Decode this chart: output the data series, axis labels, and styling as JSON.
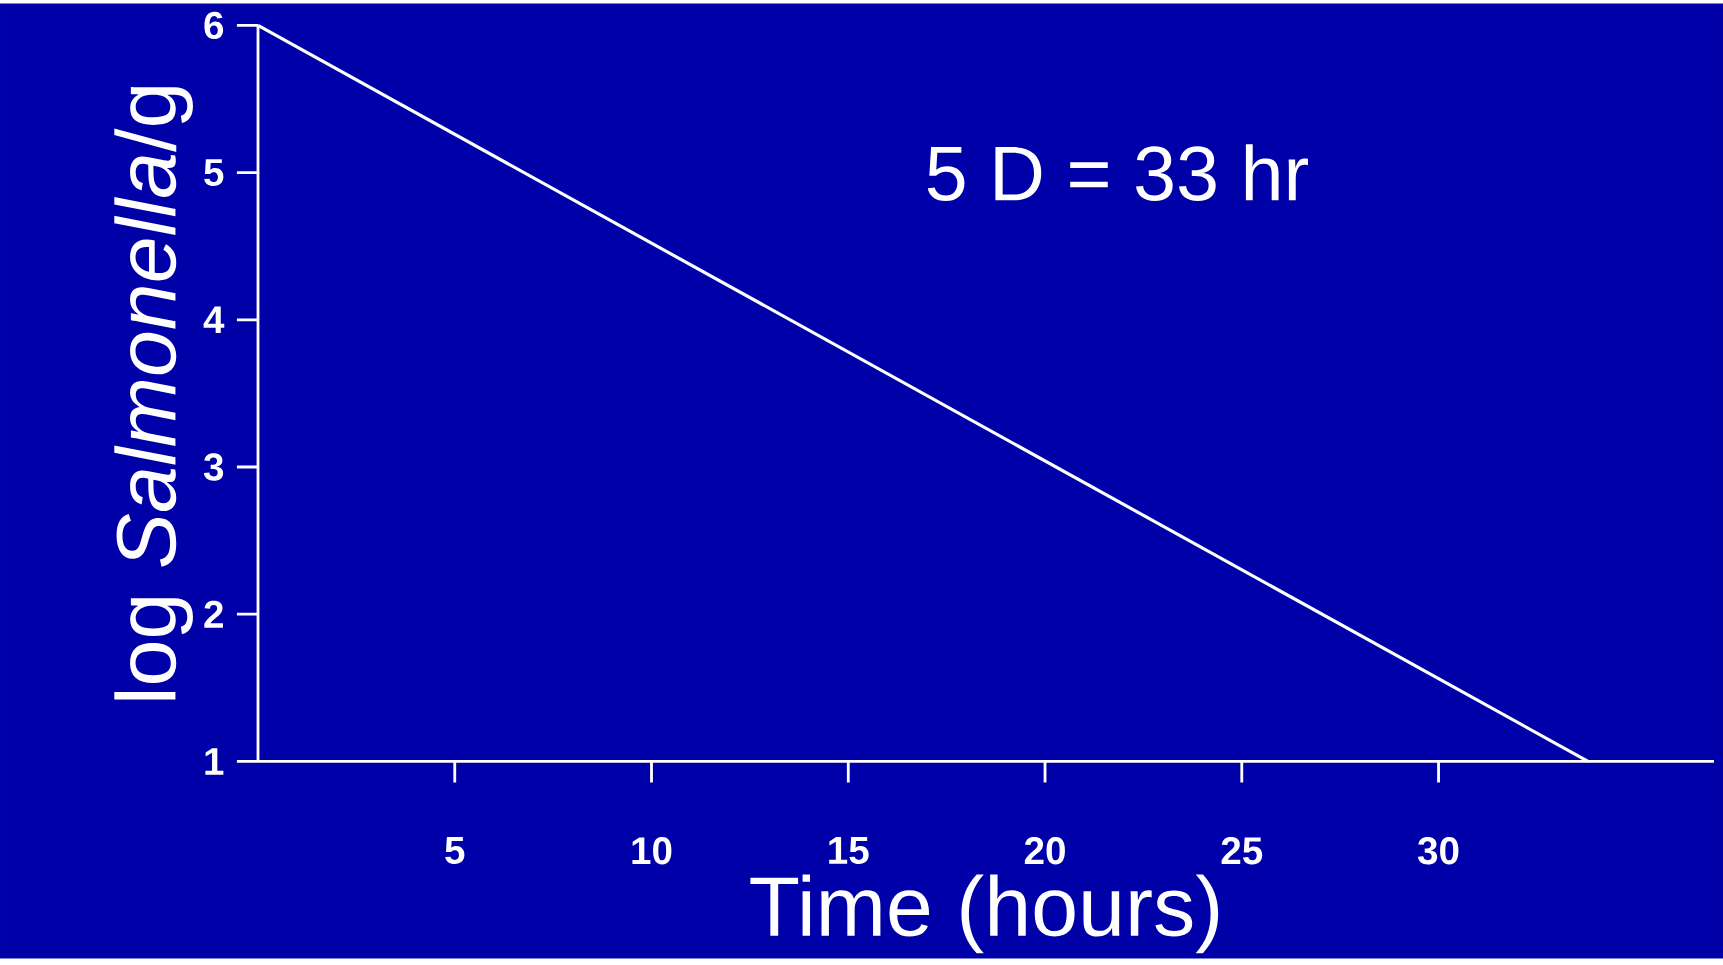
{
  "chart_data": {
    "type": "line",
    "xlabel": "Time (hours)",
    "ylabel": "log *Salmonella*/g",
    "x": [
      0,
      33.8
    ],
    "values": [
      6,
      1
    ],
    "color": "#ffffff",
    "xlim": [
      0,
      37
    ],
    "ylim": [
      1,
      6
    ],
    "xticks": [
      5,
      10,
      15,
      20,
      25,
      30
    ],
    "yticks": [
      1,
      2,
      3,
      4,
      5,
      6
    ],
    "annotations": [
      "5 D = 33 hr"
    ]
  }
}
